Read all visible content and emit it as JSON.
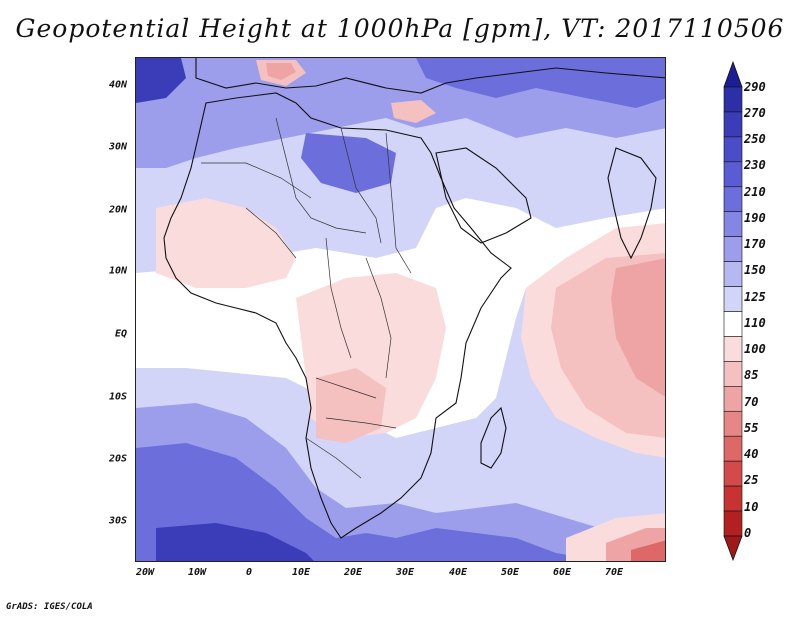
{
  "title": "Geopotential Height at 1000hPa [gpm], VT: 2017110506",
  "credit": "GrADS: IGES/COLA",
  "axes": {
    "lat_labels": [
      "40N",
      "30N",
      "20N",
      "10N",
      "EQ",
      "10S",
      "20S",
      "30S"
    ],
    "lon_labels": [
      "20W",
      "10W",
      "0",
      "10E",
      "20E",
      "30E",
      "40E",
      "50E",
      "60E",
      "70E"
    ]
  },
  "legend": {
    "labels": [
      "290",
      "270",
      "250",
      "230",
      "210",
      "190",
      "170",
      "150",
      "125",
      "110",
      "100",
      "85",
      "70",
      "55",
      "40",
      "25",
      "10",
      "0"
    ],
    "colors": [
      "#2d2fa8",
      "#3a3cb8",
      "#4a4cc8",
      "#5a5cd4",
      "#6c6edc",
      "#8486e4",
      "#9c9eec",
      "#b6b8f2",
      "#d2d4f8",
      "#ffffff",
      "#fadcdc",
      "#f4c0c0",
      "#eea4a4",
      "#e68686",
      "#de6868",
      "#d44a4a",
      "#c83232",
      "#b42020"
    ],
    "top_color": "#1c1e96",
    "bottom_color": "#a01818"
  },
  "field_colors": {
    "deep_blue": "#3a3cb8",
    "mid_blue": "#6c6edc",
    "light_blue": "#9c9eec",
    "pale_blue": "#d2d4f8",
    "white": "#ffffff",
    "pale_red": "#fadcdc",
    "light_red": "#f4c0c0",
    "mid_red": "#eea4a4",
    "deep_red": "#de6868"
  }
}
